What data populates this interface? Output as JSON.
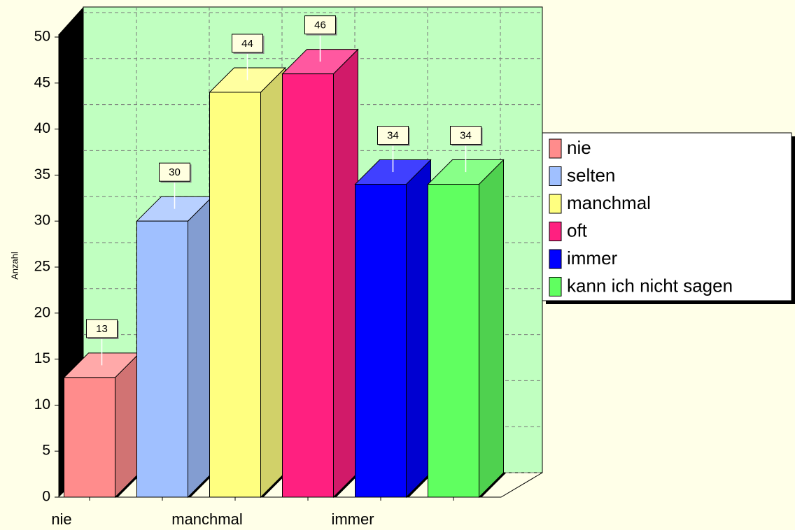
{
  "chart_data": {
    "type": "bar3d",
    "ylabel": "Anzahl",
    "categories": [
      "nie",
      null,
      "manchmal",
      null,
      "immer",
      null
    ],
    "values": [
      13,
      30,
      44,
      46,
      34,
      34
    ],
    "colors": [
      "#ff8c8c",
      "#a0c0ff",
      "#ffff80",
      "#ff2080",
      "#0000ff",
      "#60ff60"
    ],
    "legend": [
      "nie",
      "selten",
      "manchmal",
      "oft",
      "immer",
      "kann ich nicht sagen"
    ],
    "ylim": [
      0,
      50
    ],
    "yticks": [
      0,
      5,
      10,
      15,
      20,
      25,
      30,
      35,
      40,
      45,
      50
    ],
    "grid": true
  }
}
